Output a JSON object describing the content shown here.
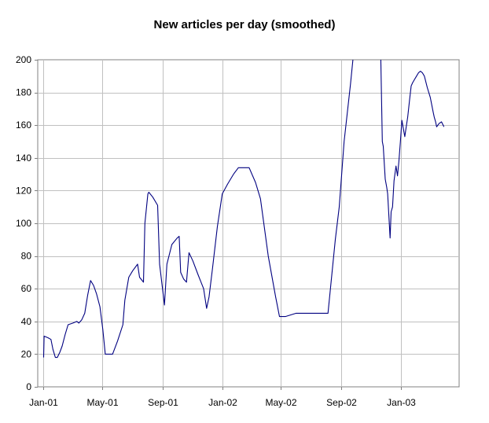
{
  "chart_data": {
    "type": "line",
    "title": "New articles per day (smoothed)",
    "xlabel": "",
    "ylabel": "",
    "grid": true,
    "legend": "none",
    "x_ticks": [
      "Jan-01",
      "May-01",
      "Sep-01",
      "Jan-02",
      "May-02",
      "Sep-02",
      "Jan-03"
    ],
    "y_ticks": [
      "0",
      "20",
      "40",
      "60",
      "80",
      "100",
      "120",
      "140",
      "160",
      "180",
      "200"
    ],
    "xlim": [
      "2000-12-20",
      "2003-04-30"
    ],
    "ylim": [
      0,
      200
    ],
    "line_color": "#000080",
    "grid_color": "#c0c0c0",
    "series": [
      {
        "points": [
          [
            "2001-01-01",
            18
          ],
          [
            "2001-01-02",
            31
          ],
          [
            "2001-01-10",
            30
          ],
          [
            "2001-01-16",
            29
          ],
          [
            "2001-01-20",
            23
          ],
          [
            "2001-01-25",
            18
          ],
          [
            "2001-01-29",
            18
          ],
          [
            "2001-02-03",
            21
          ],
          [
            "2001-02-08",
            25
          ],
          [
            "2001-02-14",
            32
          ],
          [
            "2001-02-20",
            38
          ],
          [
            "2001-03-02",
            39
          ],
          [
            "2001-03-10",
            40
          ],
          [
            "2001-03-14",
            39
          ],
          [
            "2001-03-20",
            41
          ],
          [
            "2001-03-26",
            45
          ],
          [
            "2001-04-01",
            56
          ],
          [
            "2001-04-07",
            65
          ],
          [
            "2001-04-13",
            62
          ],
          [
            "2001-04-19",
            57
          ],
          [
            "2001-04-26",
            49
          ],
          [
            "2001-05-02",
            35
          ],
          [
            "2001-05-07",
            20
          ],
          [
            "2001-05-14",
            20
          ],
          [
            "2001-05-22",
            20
          ],
          [
            "2001-06-01",
            28
          ],
          [
            "2001-06-12",
            38
          ],
          [
            "2001-06-16",
            53
          ],
          [
            "2001-06-24",
            67
          ],
          [
            "2001-07-02",
            71
          ],
          [
            "2001-07-12",
            75
          ],
          [
            "2001-07-16",
            67
          ],
          [
            "2001-07-24",
            64
          ],
          [
            "2001-07-27",
            100
          ],
          [
            "2001-08-02",
            118
          ],
          [
            "2001-08-04",
            119
          ],
          [
            "2001-08-12",
            116
          ],
          [
            "2001-08-22",
            111
          ],
          [
            "2001-08-26",
            75
          ],
          [
            "2001-09-05",
            50
          ],
          [
            "2001-09-10",
            75
          ],
          [
            "2001-09-20",
            87
          ],
          [
            "2001-10-01",
            91
          ],
          [
            "2001-10-05",
            92
          ],
          [
            "2001-10-08",
            70
          ],
          [
            "2001-10-14",
            66
          ],
          [
            "2001-10-20",
            64
          ],
          [
            "2001-10-25",
            82
          ],
          [
            "2001-11-02",
            77
          ],
          [
            "2001-11-12",
            69
          ],
          [
            "2001-11-24",
            60
          ],
          [
            "2001-11-30",
            48
          ],
          [
            "2001-12-05",
            55
          ],
          [
            "2001-12-12",
            72
          ],
          [
            "2001-12-22",
            98
          ],
          [
            "2002-01-01",
            118
          ],
          [
            "2002-01-12",
            124
          ],
          [
            "2002-01-24",
            130
          ],
          [
            "2002-02-03",
            134
          ],
          [
            "2002-02-25",
            134
          ],
          [
            "2002-03-10",
            125
          ],
          [
            "2002-03-20",
            115
          ],
          [
            "2002-04-05",
            80
          ],
          [
            "2002-04-20",
            55
          ],
          [
            "2002-04-28",
            43
          ],
          [
            "2002-05-10",
            43
          ],
          [
            "2002-06-01",
            45
          ],
          [
            "2002-07-20",
            45
          ],
          [
            "2002-08-05",
            45
          ],
          [
            "2002-08-10",
            60
          ],
          [
            "2002-08-20",
            90
          ],
          [
            "2002-08-28",
            110
          ],
          [
            "2002-09-07",
            150
          ],
          [
            "2002-09-20",
            185
          ],
          [
            "2002-09-25",
            200
          ]
        ]
      },
      {
        "points": [
          [
            "2002-11-21",
            200
          ],
          [
            "2002-11-24",
            150
          ],
          [
            "2002-11-26",
            147
          ],
          [
            "2002-11-30",
            127
          ],
          [
            "2002-12-03",
            122
          ],
          [
            "2002-12-05",
            118
          ],
          [
            "2002-12-10",
            91
          ],
          [
            "2002-12-12",
            107
          ],
          [
            "2002-12-15",
            110
          ],
          [
            "2002-12-18",
            126
          ],
          [
            "2002-12-22",
            135
          ],
          [
            "2002-12-25",
            129
          ],
          [
            "2002-12-28",
            138
          ],
          [
            "2002-12-31",
            150
          ],
          [
            "2003-01-03",
            163
          ],
          [
            "2003-01-06",
            158
          ],
          [
            "2003-01-09",
            153
          ],
          [
            "2003-01-11",
            157
          ],
          [
            "2003-01-15",
            165
          ],
          [
            "2003-01-19",
            176
          ],
          [
            "2003-01-22",
            184
          ],
          [
            "2003-01-25",
            186
          ],
          [
            "2003-01-29",
            188
          ],
          [
            "2003-02-02",
            190
          ],
          [
            "2003-02-06",
            192
          ],
          [
            "2003-02-10",
            193
          ],
          [
            "2003-02-14",
            192
          ],
          [
            "2003-02-18",
            190
          ],
          [
            "2003-02-24",
            183
          ],
          [
            "2003-03-02",
            177
          ],
          [
            "2003-03-08",
            168
          ],
          [
            "2003-03-10",
            165
          ],
          [
            "2003-03-13",
            162
          ],
          [
            "2003-03-15",
            159
          ],
          [
            "2003-03-20",
            161
          ],
          [
            "2003-03-25",
            162
          ],
          [
            "2003-03-30",
            159
          ]
        ]
      }
    ]
  }
}
